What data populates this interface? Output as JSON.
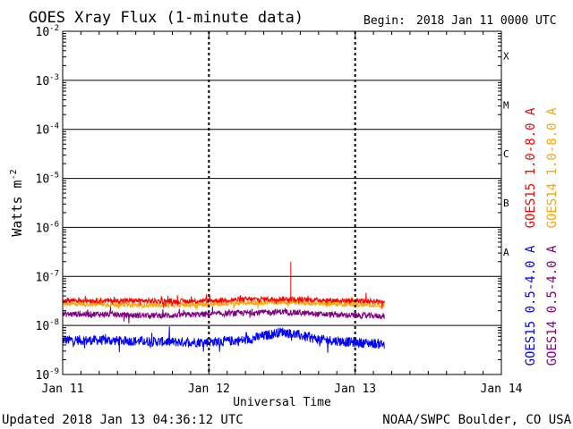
{
  "chart_data": {
    "type": "line",
    "title": "GOES Xray Flux (1-minute data)",
    "begin_label": "Begin:",
    "begin_value": "2018 Jan 11 0000 UTC",
    "ylabel_base": "Watts m",
    "ylabel_exp": "-2",
    "xlabel": "Universal Time",
    "yscale": "log",
    "ylim": [
      1e-09,
      0.01
    ],
    "y_ticks": [
      {
        "mantissa": "10",
        "exp": "-2",
        "value": 0.01
      },
      {
        "mantissa": "10",
        "exp": "-3",
        "value": 0.001
      },
      {
        "mantissa": "10",
        "exp": "-4",
        "value": 0.0001
      },
      {
        "mantissa": "10",
        "exp": "-5",
        "value": 1e-05
      },
      {
        "mantissa": "10",
        "exp": "-6",
        "value": 1e-06
      },
      {
        "mantissa": "10",
        "exp": "-7",
        "value": 1e-07
      },
      {
        "mantissa": "10",
        "exp": "-8",
        "value": 1e-08
      },
      {
        "mantissa": "10",
        "exp": "-9",
        "value": 1e-09
      }
    ],
    "x_days": [
      "2018-01-11",
      "2018-01-12",
      "2018-01-13",
      "2018-01-14"
    ],
    "x_tick_labels": [
      "Jan 11",
      "Jan 12",
      "Jan 13",
      "Jan 14"
    ],
    "flare_classes": [
      {
        "label": "X",
        "value": 0.001
      },
      {
        "label": "M",
        "value": 0.0001
      },
      {
        "label": "C",
        "value": 1e-05
      },
      {
        "label": "B",
        "value": 1e-06
      },
      {
        "label": "A",
        "value": 1e-07
      }
    ],
    "grid": "horizontal solid at each decade; vertical dotted at day boundaries",
    "series": [
      {
        "name": "GOES15 1.0-8.0 A",
        "color": "#ff0000",
        "x_days": [
          0.0,
          0.25,
          0.5,
          0.75,
          1.0,
          1.25,
          1.5,
          1.75,
          2.0,
          2.2
        ],
        "values": [
          3.3e-08,
          3.2e-08,
          3.2e-08,
          3.1e-08,
          3.2e-08,
          3.4e-08,
          3.5e-08,
          3.3e-08,
          3.2e-08,
          3.1e-08
        ]
      },
      {
        "name": "GOES14 1.0-8.0 A",
        "color": "#ffa500",
        "x_days": [
          0.0,
          0.25,
          0.5,
          0.75,
          1.0,
          1.25,
          1.5,
          1.75,
          2.0,
          2.2
        ],
        "values": [
          2.8e-08,
          2.7e-08,
          2.6e-08,
          2.6e-08,
          2.7e-08,
          2.9e-08,
          3e-08,
          2.8e-08,
          2.7e-08,
          2.6e-08
        ]
      },
      {
        "name": "GOES15 0.5-4.0 A",
        "color": "#0000ff",
        "x_days": [
          0.0,
          0.25,
          0.5,
          0.75,
          1.0,
          1.25,
          1.5,
          1.75,
          2.0,
          2.2
        ],
        "values": [
          5e-09,
          5e-09,
          4.8e-09,
          4.6e-09,
          4.6e-09,
          5e-09,
          7.5e-09,
          5.2e-09,
          4.5e-09,
          4.2e-09
        ]
      },
      {
        "name": "GOES14 0.5-4.0 A",
        "color": "#800080",
        "x_days": [
          0.0,
          0.25,
          0.5,
          0.75,
          1.0,
          1.25,
          1.5,
          1.75,
          2.0,
          2.2
        ],
        "values": [
          1.7e-08,
          1.7e-08,
          1.6e-08,
          1.6e-08,
          1.7e-08,
          1.8e-08,
          1.9e-08,
          1.7e-08,
          1.6e-08,
          1.55e-08
        ]
      }
    ],
    "spike": {
      "x_day": 1.56,
      "from": 3.2e-08,
      "to": 2e-07,
      "color": "#ff0000"
    },
    "legend_placement": "right, vertical text"
  },
  "footer": {
    "updated": "Updated 2018 Jan 13 04:36:12 UTC",
    "source": "NOAA/SWPC Boulder, CO USA"
  }
}
